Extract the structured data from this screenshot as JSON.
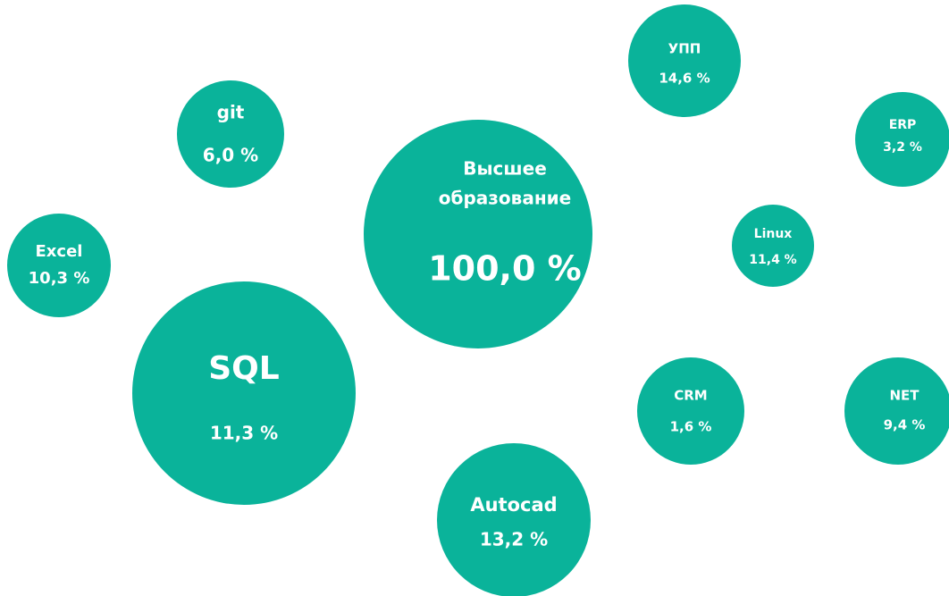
{
  "nodes": [
    {
      "label": "УПП",
      "value": "14,6 %"
    },
    {
      "label": "ERP",
      "value": "3,2 %"
    },
    {
      "label": "git",
      "value": "6,0 %"
    },
    {
      "label": [
        "Высшее",
        "образование"
      ],
      "value": "100,0 %"
    },
    {
      "label": "Linux",
      "value": "11,4 %"
    },
    {
      "label": "Excel",
      "value": "10,3 %"
    },
    {
      "label": "SQL",
      "value": "11,3 %"
    },
    {
      "label": "CRM",
      "value": "1,6 %"
    },
    {
      "label": "NET",
      "value": "9,4 %"
    },
    {
      "label": "Autocad",
      "value": "13,2 %"
    }
  ]
}
